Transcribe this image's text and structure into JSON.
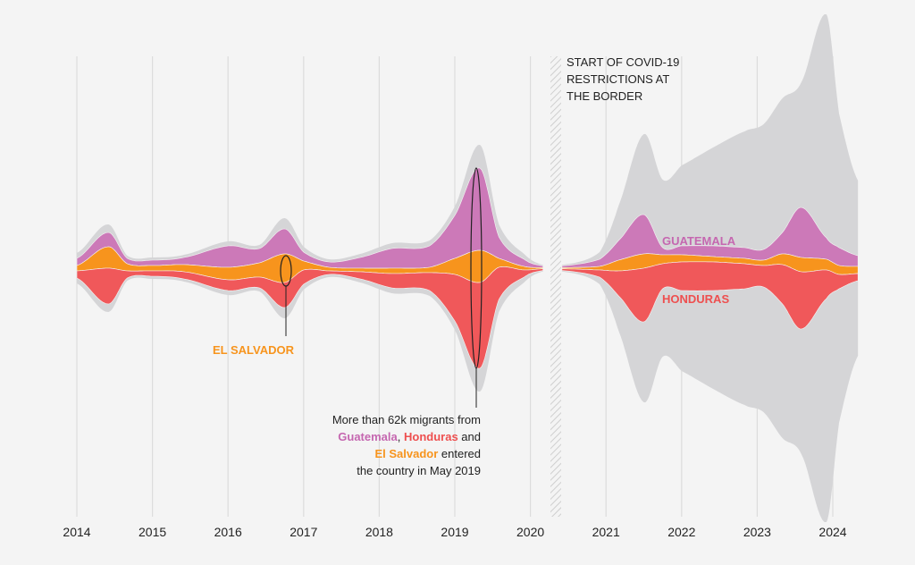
{
  "chart_data": {
    "type": "area",
    "subtype": "streamgraph",
    "unit": "thousands of migrants per month (estimated)",
    "x_ticks": [
      "2014",
      "2015",
      "2016",
      "2017",
      "2018",
      "2019",
      "2020",
      "2021",
      "2022",
      "2023",
      "2024"
    ],
    "grid": "vertical lines at each year",
    "colors": {
      "Guatemala": "#cc79b8",
      "El Salvador": "#f7941d",
      "Honduras": "#f0585a",
      "Other": "#d5d5d7"
    },
    "series_labels": {
      "guatemala": "GUATEMALA",
      "honduras": "HONDURAS",
      "el_salvador": "EL SALVADOR"
    },
    "segments": [
      {
        "dates": [
          "2014-01",
          "2014-06",
          "2014-09",
          "2015-01",
          "2015-06",
          "2016-01",
          "2016-06",
          "2016-10",
          "2017-01",
          "2017-05",
          "2017-10",
          "2018-03",
          "2018-09",
          "2019-01",
          "2019-05",
          "2019-08",
          "2019-12",
          "2020-03"
        ],
        "Guatemala": [
          2,
          4,
          1.5,
          1.5,
          2,
          6,
          4,
          7,
          2.5,
          1.5,
          3,
          5.5,
          6,
          12,
          23,
          6,
          2,
          0.5
        ],
        "El Salvador": [
          1.5,
          6,
          2,
          1.5,
          2,
          3.5,
          4,
          8,
          2.5,
          1,
          1,
          1.5,
          1.5,
          4.5,
          9,
          2.5,
          1,
          0.3
        ],
        "Honduras": [
          2,
          10,
          2,
          1.5,
          2,
          3,
          3,
          7,
          4,
          1,
          2,
          4,
          5,
          13,
          24,
          9,
          2,
          0.5
        ],
        "Other": [
          3,
          4.5,
          1.5,
          1.5,
          1.5,
          2.5,
          2,
          6,
          3,
          1.5,
          2,
          3,
          3,
          5,
          13,
          7,
          3,
          0.5
        ]
      },
      {
        "dates": [
          "2020-06",
          "2020-12",
          "2021-03",
          "2021-07",
          "2021-10",
          "2022-01",
          "2022-06",
          "2022-11",
          "2023-02",
          "2023-05",
          "2023-08",
          "2023-12",
          "2024-02",
          "2024-05"
        ],
        "Guatemala": [
          0.5,
          2,
          5.5,
          11,
          2,
          2.5,
          3,
          3,
          3,
          6,
          14,
          6,
          5,
          3
        ],
        "El Salvador": [
          0.3,
          1,
          3,
          4,
          2.5,
          2,
          1.5,
          1.5,
          1.5,
          3,
          4,
          3,
          2.5,
          2
        ],
        "Honduras": [
          0.5,
          2,
          7,
          15,
          7,
          8,
          8,
          7,
          6,
          11,
          16,
          8,
          4,
          2
        ],
        "Other": [
          0.5,
          4,
          19.5,
          45,
          38,
          45,
          55,
          65,
          70,
          75,
          70,
          125,
          75,
          42
        ]
      }
    ],
    "annotations": {
      "covid": "START OF COVID-19 RESTRICTIONS AT THE BORDER",
      "may2019": {
        "line1": "More than 62k migrants from",
        "guatemala": "Guatemala",
        "comma": ",",
        "honduras": "Honduras",
        "and": "and",
        "el_salvador": "El Salvador",
        "entered": "entered",
        "line4": "the country in May 2019"
      }
    }
  }
}
